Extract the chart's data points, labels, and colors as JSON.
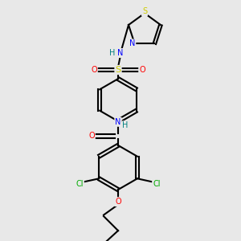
{
  "bg_color": "#e8e8e8",
  "figsize": [
    3.0,
    3.0
  ],
  "dpi": 100,
  "colors": {
    "C": "#000000",
    "N": "#0000ff",
    "O": "#ff0000",
    "S": "#cccc00",
    "Cl": "#00aa00",
    "H_label": "#008080",
    "bond": "#000000"
  }
}
